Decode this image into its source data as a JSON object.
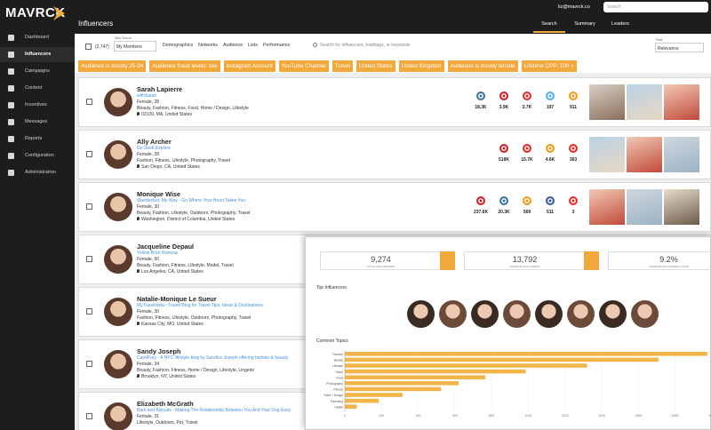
{
  "brand": "MAVRCK",
  "nav": [
    "Dashboard",
    "Influencers",
    "Campaigns",
    "Content",
    "Incentives",
    "Messages",
    "Reports",
    "Configuration",
    "Administration"
  ],
  "header": {
    "title": "Influencers",
    "user": "liz@mavrck.co",
    "search_placeholder": "Search",
    "tabs": [
      "Search",
      "Summary",
      "Leaders"
    ]
  },
  "filters": {
    "count": "(2,747)",
    "source_label": "Web Source",
    "source": "My Members",
    "menus": [
      "Demographics",
      "Networks",
      "Audience",
      "Lists",
      "Performance"
    ],
    "search_placeholder": "Search for influencers, hashtags, or keywords",
    "sort_label": "Sort",
    "sort": "Relevance",
    "chips": [
      "Audience is mostly 25-34",
      "Audience fraud levels: low",
      "Instagram Account",
      "YouTube Channel",
      "Travel",
      "United States",
      "United Kingdom",
      "Audience is mostly female",
      "Lifetime CPP: 100 +"
    ]
  },
  "influencers": [
    {
      "name": "Sarah Lapierre",
      "site": "withSarah",
      "demo": "Female, 28",
      "topics": "Beauty, Fashion, Fitness, Food, Home / Design, Lifestyle",
      "location": "02109, MA, United States",
      "stats": [
        {
          "network": "instagram",
          "value": "18.3K"
        },
        {
          "network": "pinterest",
          "value": "3.9K"
        },
        {
          "network": "youtube",
          "value": "2.7K"
        },
        {
          "network": "twitter",
          "value": "197"
        },
        {
          "network": "rss",
          "value": "911"
        }
      ]
    },
    {
      "name": "Ally Archer",
      "site": "Go Seek Explore",
      "demo": "Female, 28",
      "topics": "Fashion, Fitness, Lifestyle, Photography, Travel",
      "location": "San Diego, CA, United States",
      "stats": [
        {
          "network": "pinterest",
          "value": "518K"
        },
        {
          "network": "youtube",
          "value": "15.7K"
        },
        {
          "network": "rss",
          "value": "4.6K"
        },
        {
          "network": "youtube",
          "value": "363"
        }
      ]
    },
    {
      "name": "Monique Wise",
      "site": "Wanderlust, My Way - Go Where Your Heart Takes You",
      "demo": "Female, 30",
      "topics": "Beauty, Fashion, Lifestyle, Outdoors, Photography, Travel",
      "location": "Washington, District of Columbia, United States",
      "stats": [
        {
          "network": "pinterest",
          "value": "237.6K"
        },
        {
          "network": "instagram",
          "value": "20.3K"
        },
        {
          "network": "rss",
          "value": "569"
        },
        {
          "network": "facebook",
          "value": "511"
        },
        {
          "network": "youtube",
          "value": "3"
        }
      ]
    },
    {
      "name": "Jacqueline Depaul",
      "site": "Yellow Brick Runway",
      "demo": "Female, 50",
      "topics": "Beauty, Fashion, Fitness, Lifestyle, Model, Travel",
      "location": "Los Angeles, CA, United States"
    },
    {
      "name": "Natalie-Monique Le Sueur",
      "site": "MyTravelnista - Travel Blog for Travel Tips, Ideas & Destinations",
      "demo": "Female, 30",
      "topics": "Fashion, Fitness, Lifestyle, Outdoors, Photography, Travel",
      "location": "Kansas City, MO, United States"
    },
    {
      "name": "Sandy Joseph",
      "site": "CandFrey - A NYC lifestyle blog by Sandice Joseph offering fashion & beauty",
      "demo": "Female, 34",
      "topics": "Beauty, Fashion, Fitness, Home / Design, Lifestyle, Lingerie",
      "location": "Brooklyn, NY, United States"
    },
    {
      "name": "Elizabeth McGrath",
      "site": "Bark and Biscuits - Making The Relationship Between You And Your Dog Easy",
      "demo": "Female, 31",
      "topics": "Lifestyle, Outdoors, Pet, Travel"
    }
  ],
  "summary": {
    "stats": [
      {
        "value": "9,274",
        "label": "TOTAL INFLUENCERS"
      },
      {
        "value": "13,792",
        "label": "AVERAGE FOLLOWERS"
      },
      {
        "value": "9.2%",
        "label": "AVERAGE ENGAGEMENT RATE"
      }
    ],
    "top_title": "Top Influencers",
    "topics_title": "Common Topics",
    "common_topics": {
      "type": "bar",
      "orientation": "horizontal",
      "color": "#f2b54a",
      "categories": [
        "Fashion",
        "Beauty",
        "Lifestyle",
        "Travel",
        "Food",
        "Photography",
        "Fitness",
        "Home / Design",
        "Parenting",
        "Health"
      ],
      "values": [
        1975,
        1710,
        1320,
        985,
        765,
        620,
        525,
        315,
        185,
        65
      ],
      "xlim": [
        0,
        2000
      ],
      "xticks": [
        0,
        200,
        400,
        600,
        800,
        1000,
        1200,
        1400,
        1600,
        1800,
        2000
      ],
      "grid": true
    }
  }
}
